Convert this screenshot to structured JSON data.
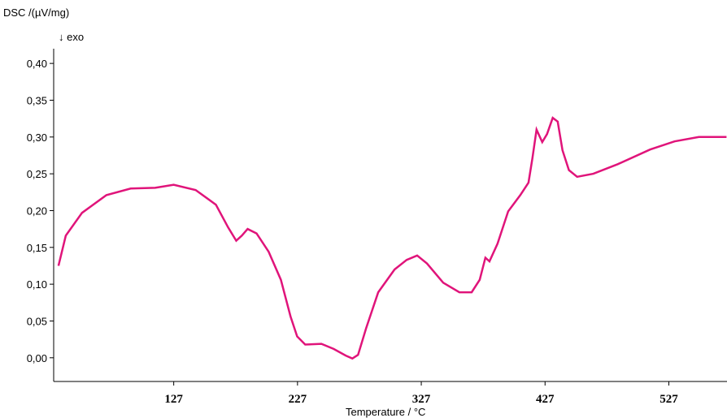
{
  "chart_data": {
    "type": "line",
    "ylabel": "DSC /(µV/mg)",
    "annotation": "↓ exo",
    "xlabel": "Temperature / °C",
    "xlim": [
      30,
      574
    ],
    "ylim": [
      -0.03,
      0.42
    ],
    "xticks": [
      127,
      227,
      327,
      427,
      527
    ],
    "yticks": [
      {
        "value": 0,
        "label": "0,00"
      },
      {
        "value": 0.05,
        "label": "0,05"
      },
      {
        "value": 0.1,
        "label": "0,10"
      },
      {
        "value": 0.15,
        "label": "0,15"
      },
      {
        "value": 0.2,
        "label": "0,20"
      },
      {
        "value": 0.25,
        "label": "0,25"
      },
      {
        "value": 0.3,
        "label": "0,30"
      },
      {
        "value": 0.35,
        "label": "0,35"
      },
      {
        "value": 0.4,
        "label": "0,40"
      }
    ],
    "color": "#e0147a",
    "x": [
      33.9,
      39.8,
      52.9,
      72.6,
      92.2,
      112,
      127,
      144.7,
      161.1,
      171,
      177.5,
      182,
      186.7,
      193.9,
      203.7,
      213.6,
      221.4,
      226.7,
      233.2,
      246.3,
      256.2,
      266,
      271.3,
      275.9,
      282.4,
      292.2,
      305.4,
      315.2,
      323.7,
      331.6,
      344.7,
      357.8,
      367.7,
      374.2,
      378.8,
      382.1,
      388.6,
      397.2,
      407,
      413.6,
      416.8,
      420.1,
      424.7,
      428.6,
      433.2,
      437.2,
      441.1,
      446.3,
      452.9,
      466,
      485.7,
      511.9,
      531.6,
      551.3,
      573.6
    ],
    "values": [
      0.125,
      0.166,
      0.197,
      0.221,
      0.23,
      0.231,
      0.235,
      0.228,
      0.208,
      0.177,
      0.159,
      0.166,
      0.175,
      0.169,
      0.144,
      0.106,
      0.056,
      0.029,
      0.018,
      0.019,
      0.012,
      0.003,
      -0.001,
      0.004,
      0.04,
      0.089,
      0.12,
      0.133,
      0.139,
      0.128,
      0.102,
      0.089,
      0.089,
      0.106,
      0.136,
      0.131,
      0.155,
      0.199,
      0.221,
      0.238,
      0.271,
      0.31,
      0.293,
      0.304,
      0.326,
      0.321,
      0.282,
      0.255,
      0.246,
      0.25,
      0.263,
      0.283,
      0.294,
      0.3,
      0.3
    ]
  }
}
